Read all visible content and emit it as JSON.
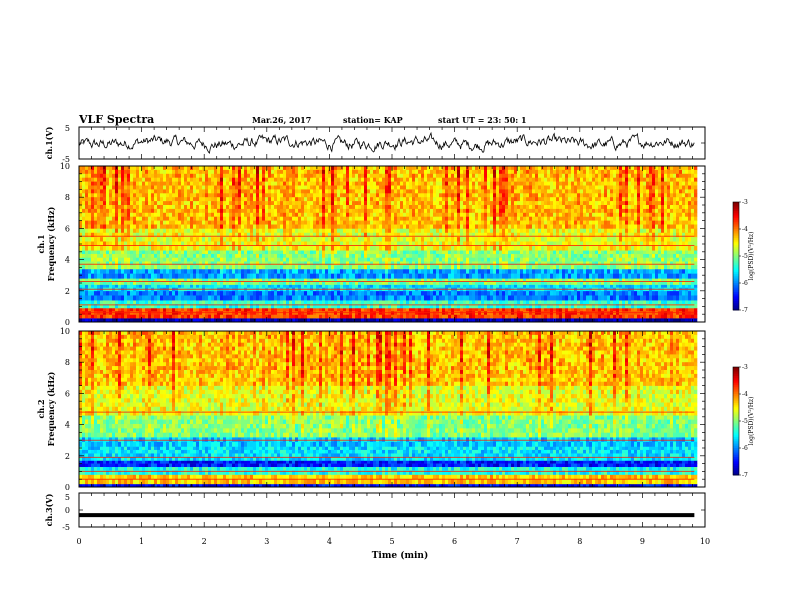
{
  "header": {
    "title": "VLF Spectra",
    "date": "Mar.26, 2017",
    "station": "station= KAP",
    "start": "start  UT  =   23: 50: 1"
  },
  "chart_data": [
    {
      "type": "line",
      "name": "ch1-waveform",
      "ylabel": "ch.1(V)",
      "ylim": [
        -5,
        5
      ],
      "yticks": [
        "5",
        "-5"
      ],
      "x_range_min": [
        0,
        9.83
      ],
      "note": "noisy waveform, roughly centered near 0 V, amplitude about +-3 V"
    },
    {
      "type": "heatmap",
      "name": "ch1-spectrogram",
      "ylabel": "ch.1\nFrequency  (kHz)",
      "ylim": [
        0,
        10
      ],
      "yticks": [
        "0",
        "2",
        "4",
        "6",
        "8",
        "10"
      ],
      "x_range_min": [
        0,
        9.83
      ],
      "colorbar": {
        "label": "log(PSD)(V²/Hz)",
        "range": [
          -7,
          -3
        ],
        "ticks": [
          "-3",
          "-4",
          "-5",
          "-6",
          "-7"
        ],
        "colormap": "jet"
      },
      "bands": [
        {
          "f0": 0.0,
          "f1": 0.25,
          "level": -6.8
        },
        {
          "f0": 0.25,
          "f1": 0.9,
          "level": -3.7
        },
        {
          "f0": 0.9,
          "f1": 1.4,
          "level": -5.3
        },
        {
          "f0": 1.4,
          "f1": 2.0,
          "level": -6.0
        },
        {
          "f0": 2.0,
          "f1": 2.4,
          "level": -5.6
        },
        {
          "f0": 2.4,
          "f1": 2.8,
          "level": -5.0
        },
        {
          "f0": 2.8,
          "f1": 3.4,
          "level": -5.9
        },
        {
          "f0": 3.4,
          "f1": 4.6,
          "level": -5.0
        },
        {
          "f0": 4.6,
          "f1": 6.0,
          "level": -4.6
        },
        {
          "f0": 6.0,
          "f1": 10.0,
          "level": -4.3
        }
      ],
      "lines_khz": [
        0.6,
        1.1,
        2.1,
        2.6,
        3.7,
        4.9,
        5.5
      ]
    },
    {
      "type": "heatmap",
      "name": "ch2-spectrogram",
      "ylabel": "ch.2\nFrequency  (kHz)",
      "ylim": [
        0,
        10
      ],
      "yticks": [
        "0",
        "2",
        "4",
        "6",
        "8",
        "10"
      ],
      "x_range_min": [
        0,
        9.83
      ],
      "colorbar": {
        "label": "log(PSD)(V²/Hz)",
        "range": [
          -7,
          -3
        ],
        "ticks": [
          "-3",
          "-4",
          "-5",
          "-6",
          "-7"
        ],
        "colormap": "jet"
      },
      "bands": [
        {
          "f0": 0.0,
          "f1": 0.2,
          "level": -6.5
        },
        {
          "f0": 0.2,
          "f1": 0.8,
          "level": -4.3
        },
        {
          "f0": 0.8,
          "f1": 1.3,
          "level": -5.4
        },
        {
          "f0": 1.3,
          "f1": 1.7,
          "level": -6.4
        },
        {
          "f0": 1.7,
          "f1": 2.6,
          "level": -5.6
        },
        {
          "f0": 2.6,
          "f1": 3.2,
          "level": -5.7
        },
        {
          "f0": 3.2,
          "f1": 4.6,
          "level": -5.0
        },
        {
          "f0": 4.6,
          "f1": 6.5,
          "level": -4.6
        },
        {
          "f0": 6.5,
          "f1": 10.0,
          "level": -4.3
        }
      ],
      "lines_khz": [
        0.5,
        1.0,
        1.9,
        3.0,
        4.8
      ]
    },
    {
      "type": "line",
      "name": "ch3-waveform",
      "ylabel": "ch.3(V)",
      "ylim": [
        -5,
        5
      ],
      "yticks": [
        "5",
        "0",
        "-5"
      ],
      "x_range_min": [
        0,
        9.83
      ],
      "constant_value": -1.5,
      "note": "flat thick line near -1.5 V"
    }
  ],
  "x_axis": {
    "label": "Time  (min)",
    "range": [
      0,
      10
    ],
    "ticks": [
      "0",
      "1",
      "2",
      "3",
      "4",
      "5",
      "6",
      "7",
      "8",
      "9",
      "10"
    ]
  }
}
